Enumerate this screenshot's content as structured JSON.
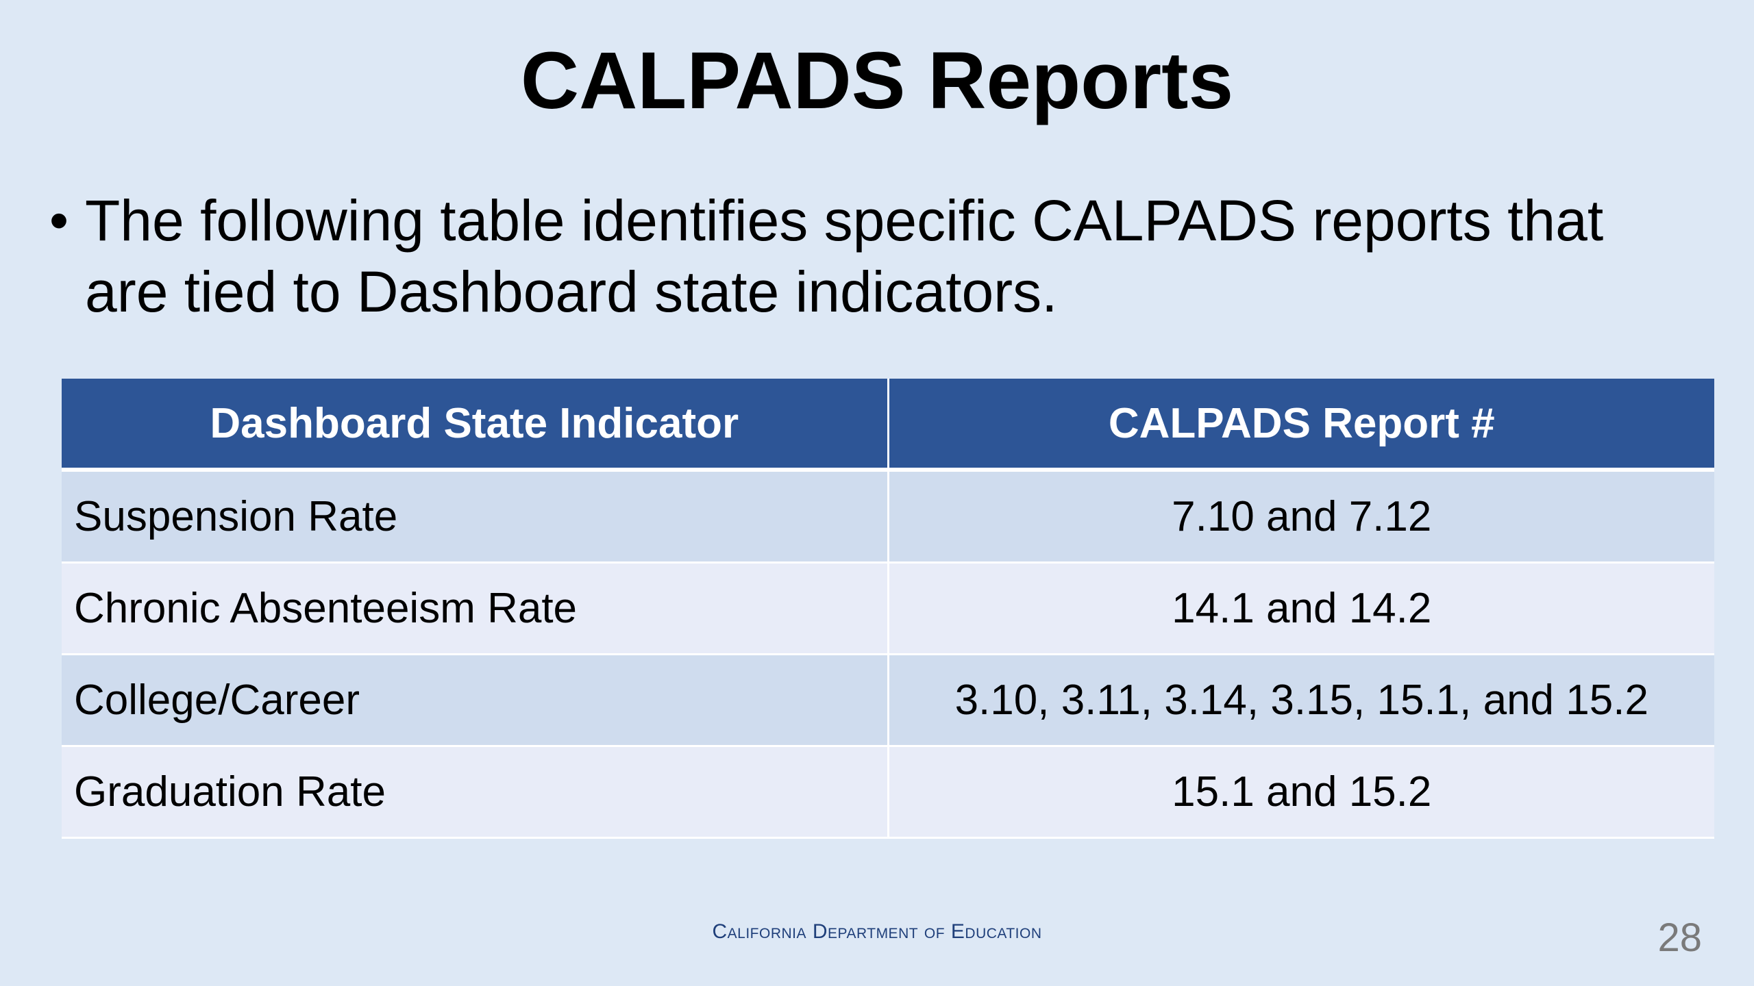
{
  "slide": {
    "title": "CALPADS Reports",
    "bullet": "The following table identifies specific CALPADS reports that are tied to Dashboard state indicators.",
    "bullet_marker": "•"
  },
  "table": {
    "headers": [
      "Dashboard State Indicator",
      "CALPADS Report #"
    ],
    "rows": [
      [
        "Suspension Rate",
        "7.10 and 7.12"
      ],
      [
        "Chronic Absenteeism Rate",
        "14.1 and 14.2"
      ],
      [
        "College/Career",
        "3.10, 3.11, 3.14, 3.15, 15.1, and 15.2"
      ],
      [
        "Graduation Rate",
        "15.1 and 15.2"
      ]
    ]
  },
  "footer": {
    "organization": "California Department of Education",
    "page_number": "28"
  },
  "colors": {
    "background": "#dde8f5",
    "header_fill": "#2d5596",
    "row_odd": "#cfdcee",
    "row_even": "#e8ecf8"
  }
}
